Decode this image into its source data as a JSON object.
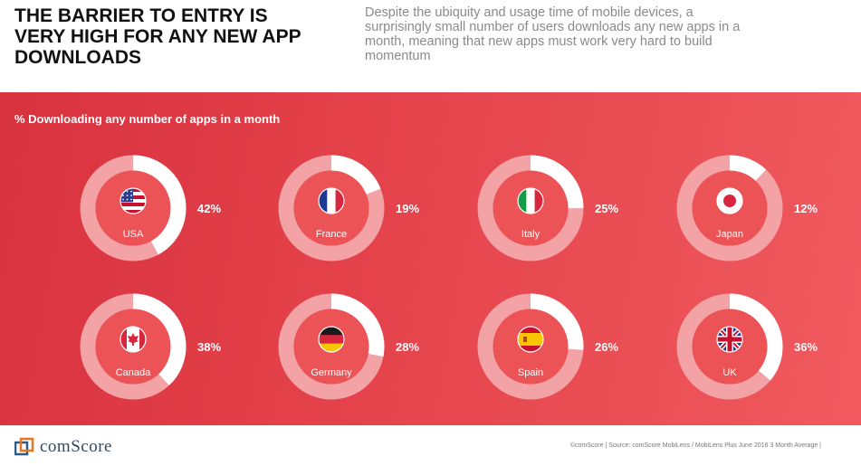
{
  "header": {
    "title": "THE BARRIER TO ENTRY IS VERY HIGH FOR ANY NEW APP DOWNLOADS",
    "subtitle": "Despite the ubiquity and usage time of mobile devices, a surprisingly small number of users downloads any new apps in a month, meaning that new apps must work very hard to build momentum"
  },
  "chart_data": {
    "type": "pie",
    "title": "% Downloading any number of apps in a month",
    "categories": [
      "USA",
      "France",
      "Italy",
      "Japan",
      "Canada",
      "Germany",
      "Spain",
      "UK"
    ],
    "values": [
      42,
      19,
      25,
      12,
      38,
      28,
      26,
      36
    ],
    "value_labels": [
      "42%",
      "19%",
      "25%",
      "12%",
      "38%",
      "28%",
      "26%",
      "36%"
    ],
    "flags": [
      "us-flag-icon",
      "france-flag-icon",
      "italy-flag-icon",
      "japan-flag-icon",
      "canada-flag-icon",
      "germany-flag-icon",
      "spain-flag-icon",
      "uk-flag-icon"
    ],
    "colors": {
      "filled": "#ffffff",
      "track": "#f3a3a6",
      "center": "#ec5357",
      "background_start": "#d8323f",
      "background_end": "#f05a5f"
    }
  },
  "footer": {
    "logo_text": "comScore",
    "source": "©comScore  |  Source: comScore MobiLens / MobiLens Plus June 2016 3 Month Average  |"
  }
}
